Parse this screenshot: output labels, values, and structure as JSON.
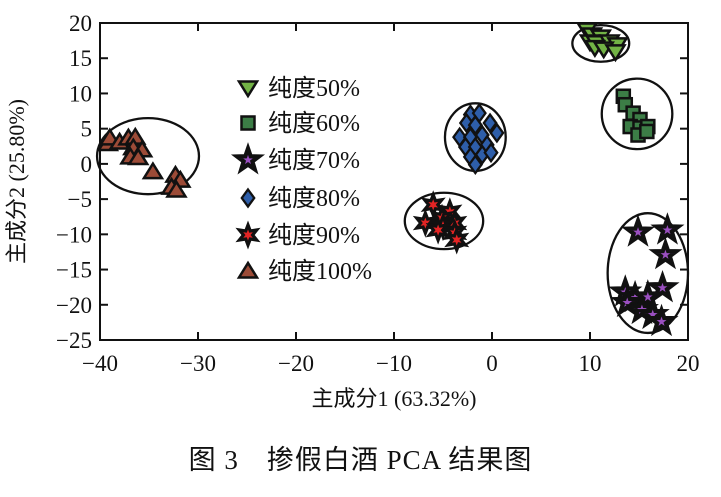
{
  "caption": "图 3　掺假白酒 PCA 结果图",
  "chart_data": {
    "type": "scatter",
    "title": "",
    "xlabel": "主成分1 (63.32%)",
    "ylabel": "主成分2 (25.80%)",
    "xlim": [
      -40,
      20
    ],
    "ylim": [
      -25,
      20
    ],
    "grid": false,
    "legend_position": "upper-left-inside",
    "xticks": [
      {
        "v": -40,
        "label": "−40"
      },
      {
        "v": -30,
        "label": "−30"
      },
      {
        "v": -20,
        "label": "−20"
      },
      {
        "v": -10,
        "label": "−10"
      },
      {
        "v": 0,
        "label": "0"
      },
      {
        "v": 10,
        "label": "10"
      },
      {
        "v": 20,
        "label": "20"
      }
    ],
    "yticks": [
      {
        "v": 20,
        "label": "20"
      },
      {
        "v": 15,
        "label": "15"
      },
      {
        "v": 10,
        "label": "10"
      },
      {
        "v": 5,
        "label": "5"
      },
      {
        "v": 0,
        "label": "0"
      },
      {
        "v": -5,
        "label": "−5"
      },
      {
        "v": -10,
        "label": "−10"
      },
      {
        "v": -15,
        "label": "−15"
      },
      {
        "v": -20,
        "label": "−20"
      },
      {
        "v": -25,
        "label": "−25"
      }
    ],
    "series": [
      {
        "name": "纯度50%",
        "marker": "triangle-down",
        "color": "#72b345",
        "edge": "#111111",
        "points": [
          [
            9.7,
            19.0
          ],
          [
            10.2,
            18.3
          ],
          [
            11.1,
            18.0
          ],
          [
            10.0,
            17.3
          ],
          [
            10.6,
            17.2
          ],
          [
            12.0,
            17.3
          ],
          [
            12.8,
            16.9
          ],
          [
            10.5,
            16.5
          ],
          [
            11.4,
            16.3
          ],
          [
            12.6,
            15.9
          ]
        ],
        "ellipse": {
          "cx": 11.1,
          "cy": 17.1,
          "rx": 2.9,
          "ry": 2.6
        }
      },
      {
        "name": "纯度60%",
        "marker": "square",
        "color": "#3c7d46",
        "edge": "#111111",
        "points": [
          [
            13.4,
            9.6
          ],
          [
            13.6,
            8.4
          ],
          [
            14.4,
            7.2
          ],
          [
            15.1,
            6.3
          ],
          [
            14.1,
            5.3
          ],
          [
            15.1,
            5.1
          ],
          [
            15.9,
            5.3
          ],
          [
            14.9,
            4.1
          ],
          [
            15.8,
            4.6
          ]
        ],
        "ellipse": {
          "cx": 14.8,
          "cy": 7.1,
          "rx": 3.6,
          "ry": 5.0
        }
      },
      {
        "name": "纯度70%",
        "marker": "star5",
        "color": "#9a4fc0",
        "edge": "#111111",
        "points": [
          [
            14.9,
            -9.7
          ],
          [
            17.9,
            -9.4
          ],
          [
            17.7,
            -12.9
          ],
          [
            17.4,
            -17.6
          ],
          [
            13.6,
            -18.2
          ],
          [
            14.6,
            -19.0
          ],
          [
            13.8,
            -19.7
          ],
          [
            15.9,
            -18.9
          ],
          [
            15.3,
            -20.7
          ],
          [
            16.4,
            -21.4
          ],
          [
            17.3,
            -22.4
          ]
        ],
        "ellipse": {
          "cx": 15.9,
          "cy": -15.5,
          "rx": 4.1,
          "ry": 8.5
        }
      },
      {
        "name": "纯度80%",
        "marker": "diamond",
        "color": "#2e5ea9",
        "edge": "#111111",
        "points": [
          [
            -2.2,
            7.0
          ],
          [
            -1.3,
            7.2
          ],
          [
            -2.6,
            5.8
          ],
          [
            -1.7,
            5.5
          ],
          [
            -0.2,
            5.8
          ],
          [
            -3.3,
            3.8
          ],
          [
            -2.2,
            3.8
          ],
          [
            -1.0,
            4.1
          ],
          [
            0.5,
            4.4
          ],
          [
            -2.7,
            2.4
          ],
          [
            -1.7,
            2.4
          ],
          [
            -0.5,
            2.7
          ],
          [
            -2.2,
            1.0
          ],
          [
            -1.0,
            1.3
          ],
          [
            -0.1,
            1.6
          ],
          [
            -1.7,
            -0.1
          ]
        ],
        "ellipse": {
          "cx": -1.7,
          "cy": 3.8,
          "rx": 3.1,
          "ry": 4.8
        }
      },
      {
        "name": "纯度90%",
        "marker": "star6",
        "color": "#e32424",
        "edge": "#111111",
        "points": [
          [
            -6.0,
            -5.8
          ],
          [
            -4.3,
            -6.8
          ],
          [
            -5.1,
            -7.7
          ],
          [
            -6.8,
            -8.4
          ],
          [
            -3.8,
            -8.4
          ],
          [
            -5.0,
            -8.9
          ],
          [
            -5.5,
            -9.4
          ],
          [
            -3.8,
            -9.8
          ],
          [
            -3.6,
            -10.8
          ]
        ],
        "ellipse": {
          "cx": -4.9,
          "cy": -8.1,
          "rx": 4.0,
          "ry": 4.0
        }
      },
      {
        "name": "纯度100%",
        "marker": "triangle-up",
        "color": "#9c4b37",
        "edge": "#111111",
        "points": [
          [
            -39.2,
            2.9
          ],
          [
            -39.0,
            3.7
          ],
          [
            -38.0,
            3.1
          ],
          [
            -37.1,
            3.7
          ],
          [
            -36.4,
            3.8
          ],
          [
            -36.6,
            2.3
          ],
          [
            -35.7,
            2.0
          ],
          [
            -36.9,
            1.0
          ],
          [
            -36.1,
            0.9
          ],
          [
            -34.6,
            -1.1
          ],
          [
            -32.3,
            -1.6
          ],
          [
            -31.8,
            -2.3
          ],
          [
            -32.7,
            -3.3
          ],
          [
            -32.2,
            -3.7
          ]
        ],
        "ellipse": {
          "cx": -35.1,
          "cy": 1.1,
          "rx": 5.2,
          "ry": 5.4
        }
      }
    ]
  }
}
